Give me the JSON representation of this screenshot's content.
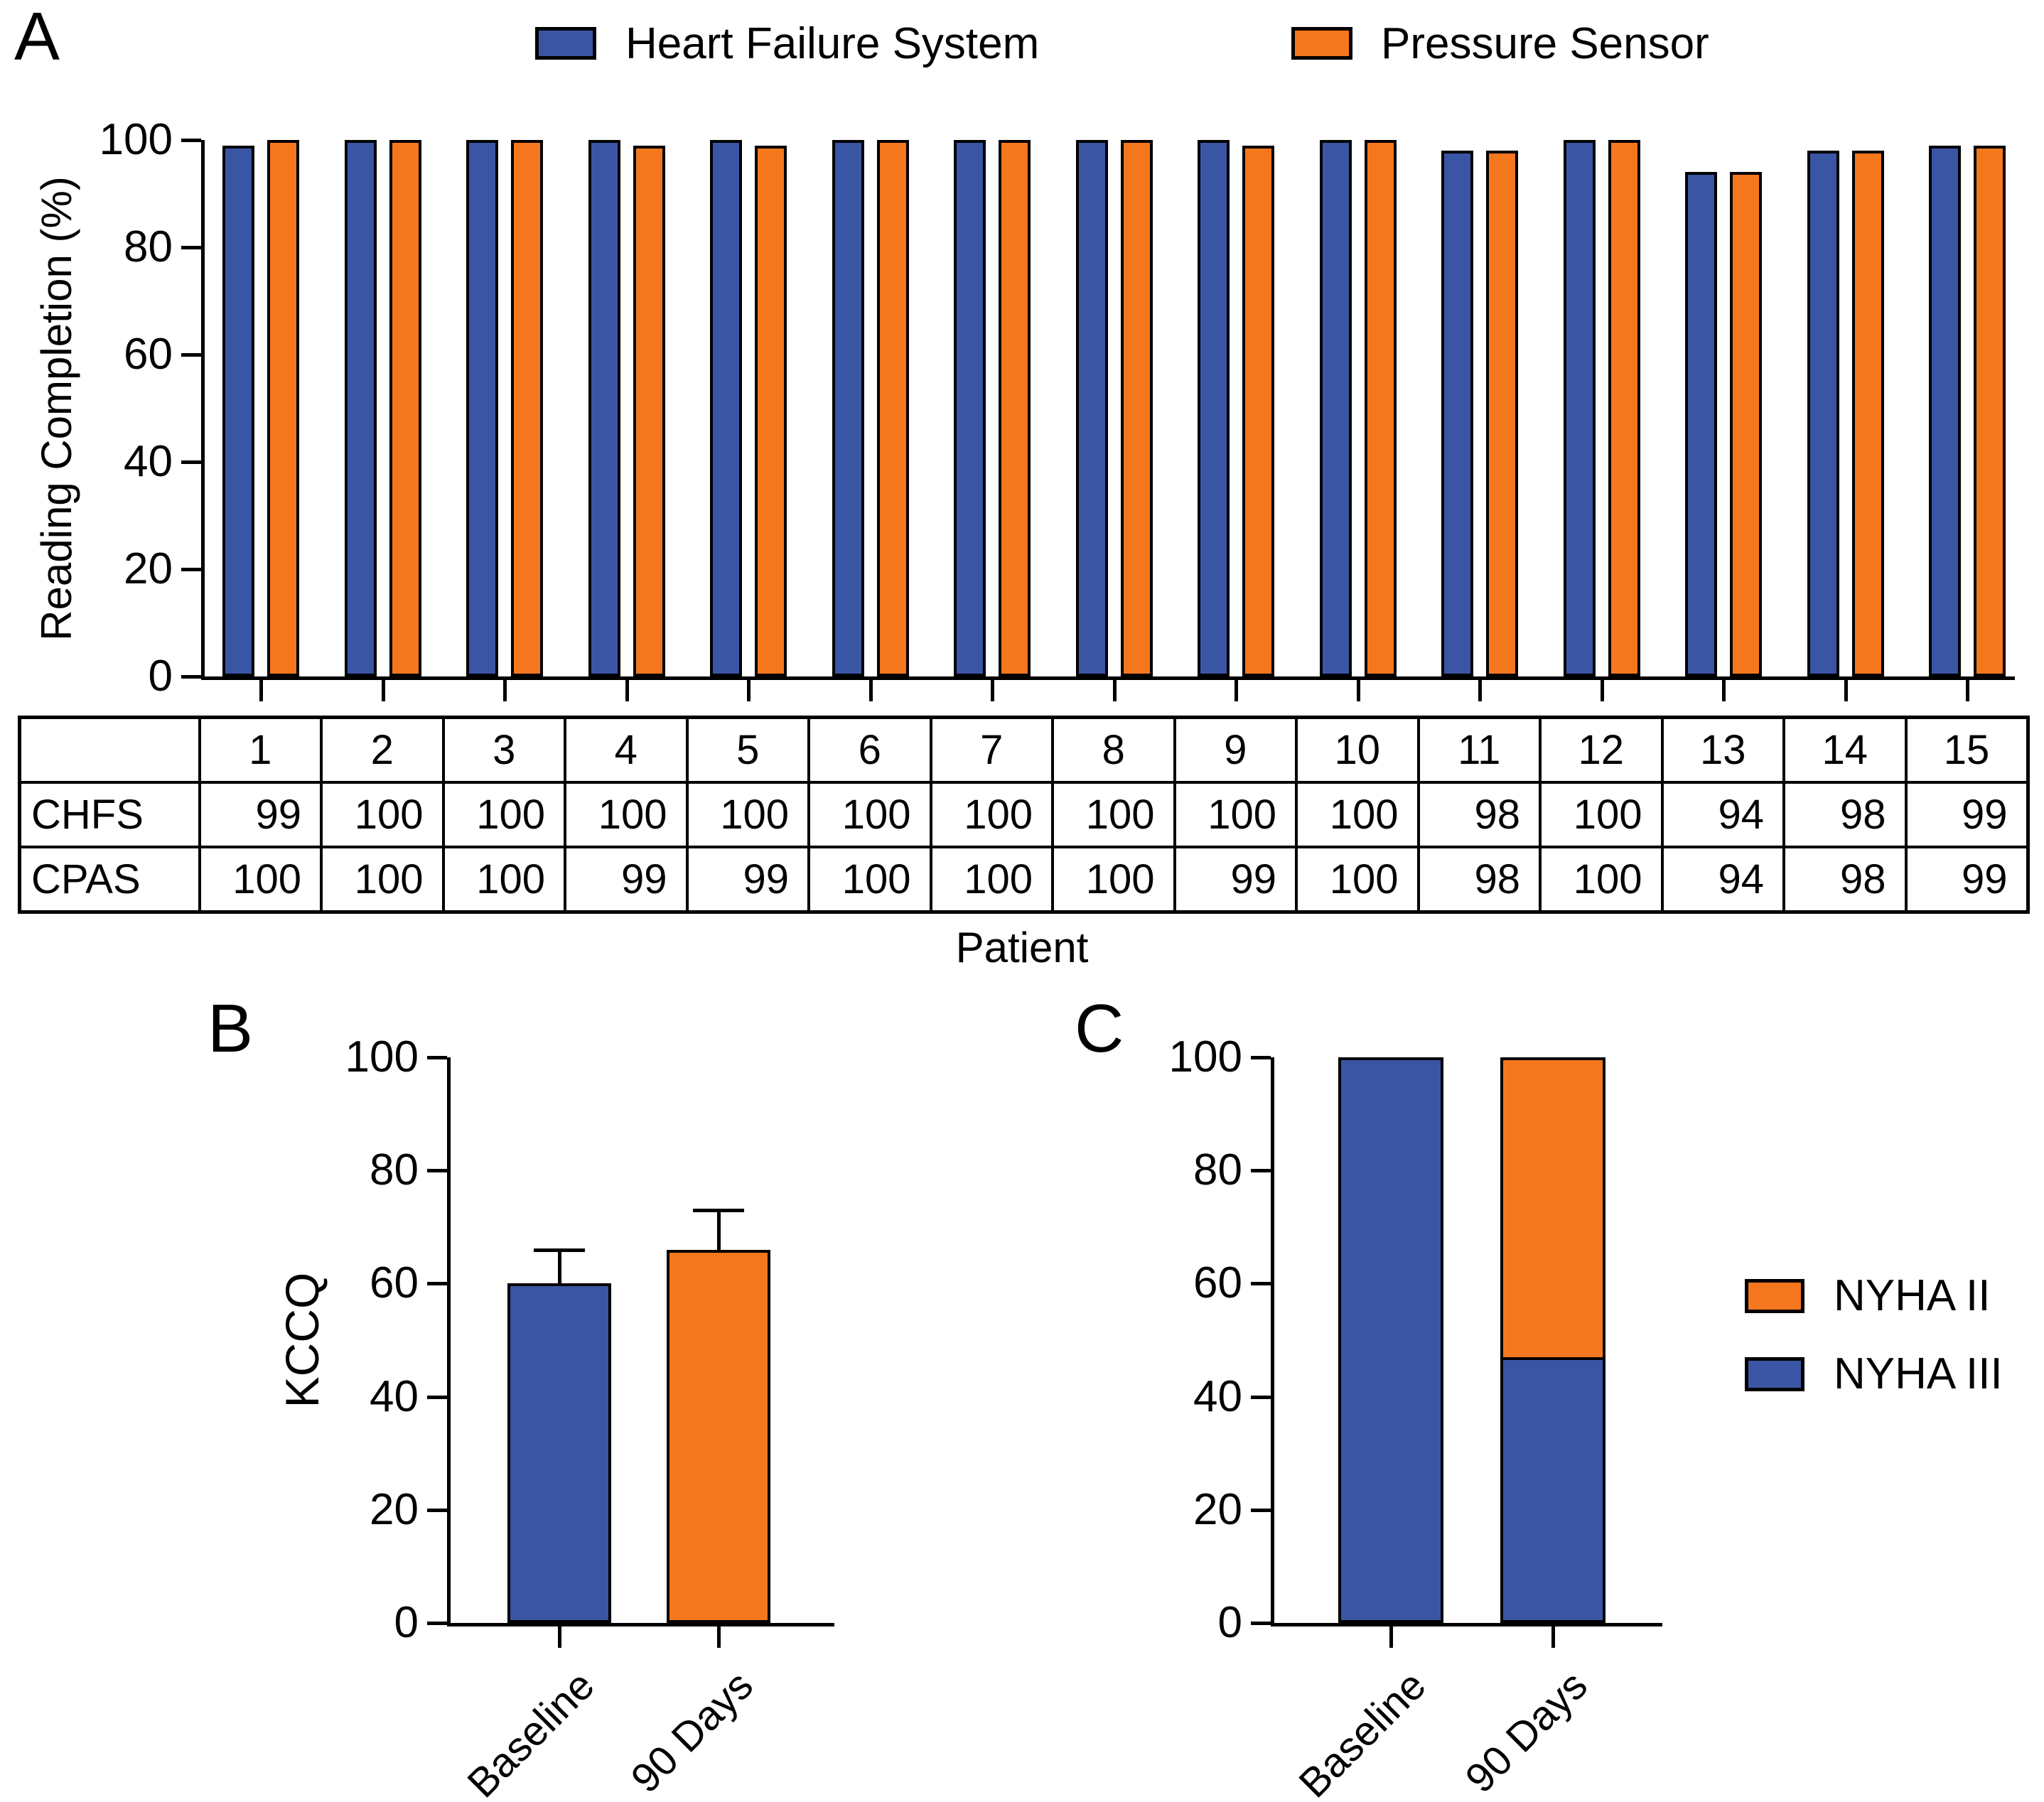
{
  "panelA": {
    "label": "A",
    "ylabel": "Reading Completion (%)",
    "xlabel": "Patient",
    "legend": [
      {
        "label": "Heart Failure System",
        "color": "#3B55A5"
      },
      {
        "label": "Pressure Sensor",
        "color": "#F4771E"
      }
    ]
  },
  "panelB": {
    "label": "B",
    "ylabel": "KCCQ"
  },
  "panelC": {
    "label": "C",
    "legend": [
      {
        "label": "NYHA II",
        "color": "#F4771E"
      },
      {
        "label": "NYHA III",
        "color": "#3B55A5"
      }
    ]
  },
  "table": {
    "corner": "",
    "columns": [
      "1",
      "2",
      "3",
      "4",
      "5",
      "6",
      "7",
      "8",
      "9",
      "10",
      "11",
      "12",
      "13",
      "14",
      "15"
    ],
    "rows": [
      {
        "header": "CHFS",
        "values": [
          99,
          100,
          100,
          100,
          100,
          100,
          100,
          100,
          100,
          100,
          98,
          100,
          94,
          98,
          99
        ]
      },
      {
        "header": "CPAS",
        "values": [
          100,
          100,
          100,
          99,
          99,
          100,
          100,
          100,
          99,
          100,
          98,
          100,
          94,
          98,
          99
        ]
      }
    ],
    "caption": "Patient"
  },
  "chart_data": [
    {
      "id": "A",
      "type": "bar",
      "title": "",
      "categories": [
        "1",
        "2",
        "3",
        "4",
        "5",
        "6",
        "7",
        "8",
        "9",
        "10",
        "11",
        "12",
        "13",
        "14",
        "15"
      ],
      "series": [
        {
          "name": "Heart Failure System",
          "abbr": "CHFS",
          "color": "#3B55A5",
          "values": [
            99,
            100,
            100,
            100,
            100,
            100,
            100,
            100,
            100,
            100,
            98,
            100,
            94,
            98,
            99
          ]
        },
        {
          "name": "Pressure Sensor",
          "abbr": "CPAS",
          "color": "#F4771E",
          "values": [
            100,
            100,
            100,
            99,
            99,
            100,
            100,
            100,
            99,
            100,
            98,
            100,
            94,
            98,
            99
          ]
        }
      ],
      "xlabel": "Patient",
      "ylabel": "Reading Completion (%)",
      "ylim": [
        0,
        100
      ],
      "yticks": [
        0,
        20,
        40,
        60,
        80,
        100
      ],
      "grid": false,
      "legend_position": "top"
    },
    {
      "id": "B",
      "type": "bar",
      "title": "",
      "categories": [
        "Baseline",
        "90 Days"
      ],
      "values": [
        60,
        66
      ],
      "errors_upper": [
        66,
        73
      ],
      "colors": [
        "#3B55A5",
        "#F4771E"
      ],
      "xlabel": "",
      "ylabel": "KCCQ",
      "ylim": [
        0,
        100
      ],
      "yticks": [
        0,
        20,
        40,
        60,
        80,
        100
      ],
      "grid": false
    },
    {
      "id": "C",
      "type": "stacked-bar",
      "title": "",
      "categories": [
        "Baseline",
        "90 Days"
      ],
      "series": [
        {
          "name": "NYHA III",
          "color": "#3B55A5",
          "values": [
            100,
            47
          ]
        },
        {
          "name": "NYHA II",
          "color": "#F4771E",
          "values": [
            0,
            53
          ]
        }
      ],
      "xlabel": "",
      "ylabel": "",
      "ylim": [
        0,
        100
      ],
      "yticks": [
        0,
        20,
        40,
        60,
        80,
        100
      ],
      "grid": false,
      "legend_position": "right",
      "legend_order": [
        "NYHA II",
        "NYHA III"
      ]
    }
  ]
}
